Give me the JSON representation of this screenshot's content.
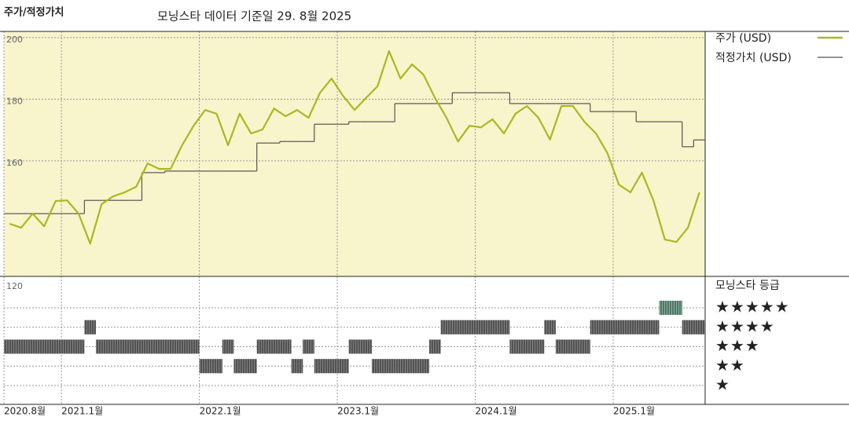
{
  "chart_data": {
    "type": "line",
    "title": "주가/적정가치",
    "subtitle": "모닝스타 데이터 기준일 29. 8월 2025",
    "x": [
      "2020-08",
      "2020-09",
      "2020-10",
      "2020-11",
      "2020-12",
      "2021-01",
      "2021-02",
      "2021-03",
      "2021-04",
      "2021-05",
      "2021-06",
      "2021-07",
      "2021-08",
      "2021-09",
      "2021-10",
      "2021-11",
      "2021-12",
      "2022-01",
      "2022-02",
      "2022-03",
      "2022-04",
      "2022-05",
      "2022-06",
      "2022-07",
      "2022-08",
      "2022-09",
      "2022-10",
      "2022-11",
      "2022-12",
      "2023-01",
      "2023-02",
      "2023-03",
      "2023-04",
      "2023-05",
      "2023-06",
      "2023-07",
      "2023-08",
      "2023-09",
      "2023-10",
      "2023-11",
      "2023-12",
      "2024-01",
      "2024-02",
      "2024-03",
      "2024-04",
      "2024-05",
      "2024-06",
      "2024-07",
      "2024-08",
      "2024-09",
      "2024-10",
      "2024-11",
      "2024-12",
      "2025-01",
      "2025-02",
      "2025-03",
      "2025-04",
      "2025-05",
      "2025-06",
      "2025-07",
      "2025-08"
    ],
    "series": [
      {
        "name": "주가 (USD)",
        "color": "#a9b823",
        "values": [
          139.6,
          138.3,
          142.9,
          138.8,
          147,
          147.2,
          142.9,
          133.2,
          146,
          148.5,
          149.8,
          151.6,
          159.2,
          157.4,
          157.4,
          165.1,
          171.4,
          176.5,
          175.3,
          165.1,
          175.3,
          168.9,
          170.2,
          177,
          174.5,
          176.5,
          174,
          182.1,
          186.7,
          181.1,
          176.5,
          180.4,
          184.2,
          195.6,
          186.7,
          191.3,
          188,
          180.4,
          174,
          166.3,
          171.4,
          170.9,
          173.5,
          168.9,
          175.3,
          177.8,
          174,
          166.9,
          177.8,
          177.8,
          172.7,
          168.9,
          162.5,
          152.3,
          149.8,
          156.2,
          147.2,
          134.5,
          133.7,
          138.3,
          149.8
        ]
      },
      {
        "name": "적정가치 (USD)",
        "color": "#555555",
        "values": [
          142.9,
          142.9,
          142.9,
          142.9,
          142.9,
          142.9,
          142.9,
          147.2,
          147.2,
          147.2,
          147.2,
          147.2,
          156.2,
          156.2,
          156.7,
          156.7,
          156.7,
          156.7,
          156.7,
          156.7,
          156.7,
          156.7,
          165.8,
          165.8,
          166.3,
          166.3,
          166.3,
          171.9,
          171.9,
          171.9,
          172.7,
          172.7,
          172.7,
          172.7,
          178.6,
          178.6,
          178.6,
          178.6,
          178.6,
          182.1,
          182.1,
          182.1,
          182.1,
          182.1,
          178.6,
          178.6,
          178.6,
          178.6,
          178.6,
          178.6,
          178.6,
          176,
          176,
          176,
          176,
          172.7,
          172.7,
          172.7,
          172.7,
          164.6,
          166.8
        ]
      }
    ],
    "xlim": [
      "2020-08",
      "2025-09"
    ],
    "xticks": [
      {
        "value": "2020-08",
        "label": "2020.8월"
      },
      {
        "value": "2021-01",
        "label": "2021.1월"
      },
      {
        "value": "2022-01",
        "label": "2022.1월"
      },
      {
        "value": "2023-01",
        "label": "2023.1월"
      },
      {
        "value": "2024-01",
        "label": "2024.1월"
      },
      {
        "value": "2025-01",
        "label": "2025.1월"
      }
    ],
    "ylim": [
      120,
      202
    ],
    "yticks": [
      120,
      160,
      180,
      200
    ],
    "ratings": {
      "title": "모닝스타 등급",
      "labels": [
        "★",
        "★★",
        "★★★",
        "★★★★",
        "★★★★★"
      ],
      "colors": [
        "#3a3a3a",
        "#3a3a3a",
        "#3a3a3a",
        "#3a3a3a",
        "#3f8a66"
      ],
      "values": [
        3,
        3,
        3,
        3,
        3,
        3,
        3,
        4,
        3,
        3,
        3,
        3,
        3,
        3,
        3,
        3,
        3,
        2,
        2,
        3,
        2,
        2,
        3,
        3,
        3,
        2,
        3,
        2,
        2,
        2,
        3,
        3,
        2,
        2,
        2,
        2,
        2,
        3,
        4,
        4,
        4,
        4,
        4,
        4,
        3,
        3,
        3,
        4,
        3,
        3,
        3,
        4,
        4,
        4,
        4,
        4,
        4,
        5,
        5,
        4,
        4
      ]
    }
  }
}
